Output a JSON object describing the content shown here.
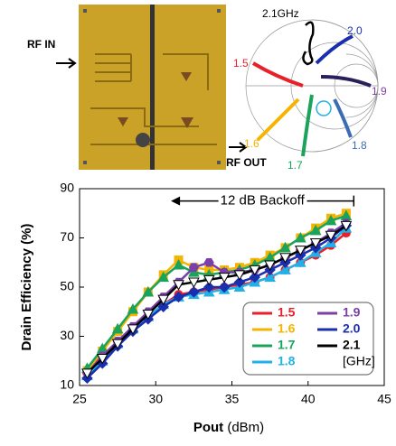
{
  "photo": {
    "labels": [
      "RF IN",
      "RF OUT"
    ]
  },
  "smith_chart": {
    "labels": [
      "2.1GHz",
      "2.0",
      "1.9",
      "1.8",
      "1.7",
      "1.6",
      "1.5"
    ]
  },
  "chart_data": {
    "type": "line",
    "xlabel": "Pout",
    "xlabel_unit": "(dBm)",
    "ylabel": "Drain Efficiency (%)",
    "xlim": [
      25,
      45
    ],
    "xticks": [
      25,
      30,
      35,
      40,
      45
    ],
    "ylim": [
      10,
      90
    ],
    "yticks": [
      10,
      30,
      50,
      70,
      90
    ],
    "annotation": {
      "text": "12 dB Backoff",
      "x": [
        31,
        43
      ],
      "y": 85
    },
    "legend": "lower right",
    "legend_unit": "[GHz]",
    "x": [
      25.5,
      26.5,
      27.5,
      28.5,
      29.5,
      30.5,
      31.5,
      32.5,
      33.5,
      34.5,
      35.5,
      36.5,
      37.5,
      38.5,
      39.5,
      40.5,
      41.5,
      42.5
    ],
    "series": [
      {
        "name": "1.5",
        "color": "#e8202a",
        "marker": "circle",
        "values": [
          16,
          22,
          28,
          33,
          38,
          43,
          47,
          48,
          49,
          50,
          51,
          52,
          54,
          57,
          60,
          63,
          67,
          72
        ]
      },
      {
        "name": "1.6",
        "color": "#f5b400",
        "marker": "square",
        "values": [
          16,
          24,
          32,
          40,
          48,
          55,
          61,
          58,
          57,
          57,
          58,
          60,
          63,
          66,
          70,
          74,
          78,
          80
        ]
      },
      {
        "name": "1.7",
        "color": "#1aa35a",
        "marker": "triangle",
        "values": [
          17,
          25,
          33,
          41,
          48,
          54,
          59,
          56,
          55,
          56,
          57,
          59,
          62,
          66,
          70,
          73,
          77,
          79
        ]
      },
      {
        "name": "1.8",
        "color": "#22b0e6",
        "marker": "triangle",
        "values": [
          14,
          20,
          27,
          33,
          38,
          43,
          46,
          47,
          48,
          49,
          50,
          52,
          54,
          57,
          60,
          64,
          68,
          74
        ]
      },
      {
        "name": "1.9",
        "color": "#7b3fa8",
        "marker": "hexagon",
        "values": [
          15,
          22,
          28,
          34,
          40,
          46,
          52,
          58,
          60,
          56,
          56,
          57,
          59,
          62,
          65,
          68,
          72,
          76
        ]
      },
      {
        "name": "2.0",
        "color": "#1a2fae",
        "marker": "diamond",
        "values": [
          13,
          19,
          26,
          32,
          37,
          42,
          46,
          48,
          50,
          50,
          52,
          54,
          57,
          60,
          63,
          66,
          70,
          75
        ]
      },
      {
        "name": "2.1",
        "color": "#000000",
        "marker": "triangle-down",
        "values": [
          15,
          21,
          27,
          33,
          39,
          45,
          51,
          52,
          53,
          54,
          55,
          57,
          59,
          62,
          65,
          68,
          71,
          75
        ]
      }
    ]
  }
}
